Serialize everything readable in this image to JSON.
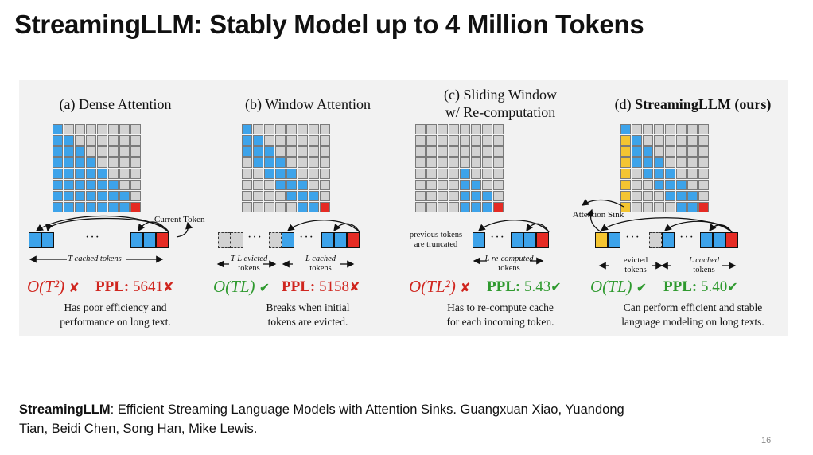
{
  "title": "StreamingLLM: Stably Model up to 4 Million Tokens",
  "colors": {
    "blue": "#3da3ea",
    "red": "#e52b24",
    "yellow": "#f4c531",
    "gray": "#d2d2d2",
    "ok": "#2f9a2f",
    "bad": "#d0261f"
  },
  "panels": [
    {
      "title": "(a) Dense Attention",
      "token_note": "Current Token",
      "label_left": "T cached tokens",
      "complexity": "O(T²)",
      "complexity_mark": "✘",
      "ppl_label": "PPL:",
      "ppl_value": "5641",
      "ppl_mark": "✘",
      "desc_1": "Has poor efficiency and",
      "desc_2": "performance on long text."
    },
    {
      "title": "(b) Window Attention",
      "label_left_1": "T-L evicted",
      "label_left_2": "tokens",
      "label_right_1": "L cached",
      "label_right_2": "tokens",
      "complexity": "O(TL)",
      "complexity_mark": "✔",
      "ppl_label": "PPL:",
      "ppl_value": "5158",
      "ppl_mark": "✘",
      "desc_1": "Breaks when initial",
      "desc_2": "tokens are evicted."
    },
    {
      "title_1": "(c) Sliding Window",
      "title_2": "w/ Re-computation",
      "note_1": "previous tokens",
      "note_2": "are truncated",
      "label_right_1": "L re-computed",
      "label_right_2": "tokens",
      "complexity": "O(TL²)",
      "complexity_mark": "✘",
      "ppl_label": "PPL:",
      "ppl_value": "5.43",
      "ppl_mark": "✔",
      "desc_1": "Has to re-compute cache",
      "desc_2": "for each incoming token."
    },
    {
      "title_prefix": "(d) ",
      "title_bold": "StreamingLLM (ours)",
      "sink_label": "Attention Sink",
      "label_left_1": "evicted",
      "label_left_2": "tokens",
      "label_right_1": "L cached",
      "label_right_2": "tokens",
      "complexity": "O(TL)",
      "complexity_mark": "✔",
      "ppl_label": "PPL:",
      "ppl_value": "5.40",
      "ppl_mark": "✔",
      "desc_1": "Can perform efficient and stable",
      "desc_2": "language modeling on long texts."
    }
  ],
  "ellipsis": "···",
  "citation": {
    "bold": "StreamingLLM",
    "rest": ": Efficient Streaming Language Models with Attention Sinks. Guangxuan Xiao, Yuandong Tian, Beidi Chen, Song Han, Mike Lewis."
  },
  "page_number": "16"
}
